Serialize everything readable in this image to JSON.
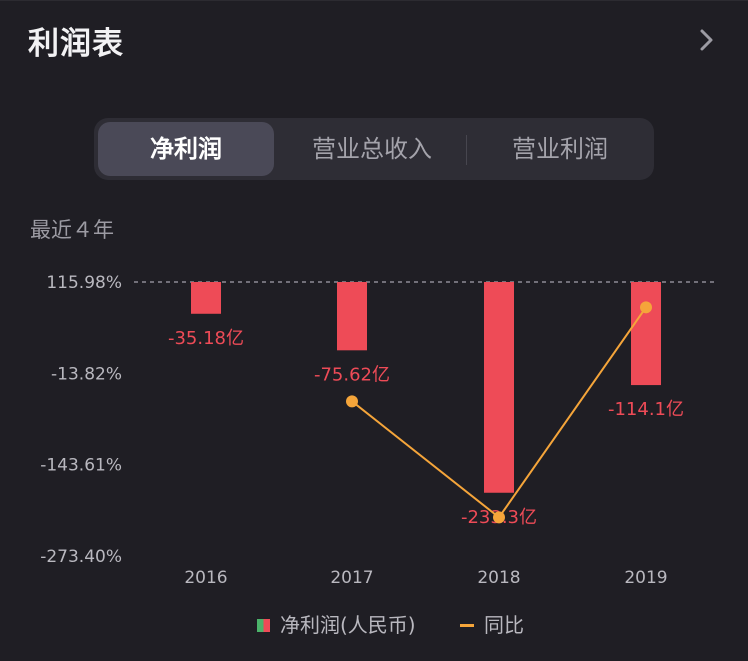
{
  "header": {
    "title": "利润表"
  },
  "tabs": [
    {
      "label": "净利润",
      "active": true
    },
    {
      "label": "营业总收入",
      "active": false
    },
    {
      "label": "营业利润",
      "active": false
    }
  ],
  "range_label": "最近４年",
  "colors": {
    "bar": "#ee4b57",
    "line": "#f5a53a",
    "bar_label": "#ee4b57",
    "background": "#1f1e24"
  },
  "chart_data": {
    "type": "bar",
    "categories": [
      "2016",
      "2017",
      "2018",
      "2019"
    ],
    "series": [
      {
        "name": "净利润(人民币)",
        "unit": "亿",
        "values": [
          -35.18,
          -75.62,
          -233.3,
          -114.1
        ],
        "labels": [
          "-35.18亿",
          "-75.62亿",
          "-233.3亿",
          "-114.1亿"
        ]
      },
      {
        "name": "同比",
        "unit": "%",
        "values": [
          null,
          -53.6,
          -218.5,
          80.0
        ]
      }
    ],
    "y_ticks": [
      "115.98%",
      "-13.82%",
      "-143.61%",
      "-273.40%"
    ],
    "y_tick_values": [
      115.98,
      -13.82,
      -143.61,
      -273.4
    ],
    "bar_axis_range": [
      -238.0,
      0
    ],
    "ylim": [
      -273.4,
      115.98
    ],
    "zero_line": "dashed"
  },
  "legend": {
    "bar_label": "净利润(人民币)",
    "line_label": "同比"
  }
}
